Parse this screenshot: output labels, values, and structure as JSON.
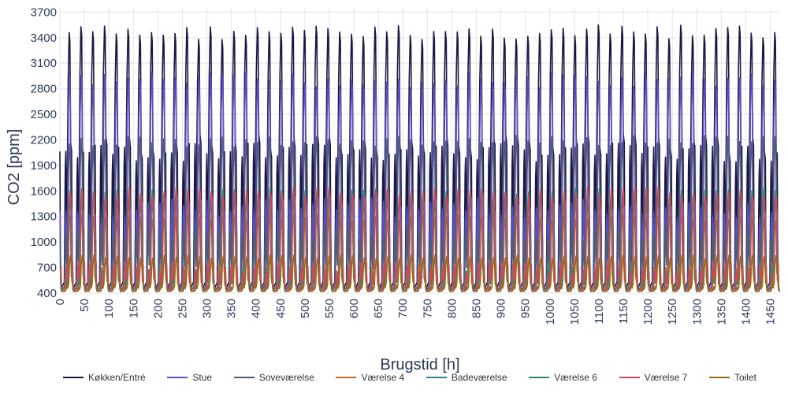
{
  "chart_data": {
    "type": "line",
    "title": "",
    "xlabel": "Brugstid [h]",
    "ylabel": "CO2 [ppm]",
    "xlim": [
      0,
      1470
    ],
    "ylim": [
      400,
      3750
    ],
    "x_ticks": [
      0,
      50,
      100,
      150,
      200,
      250,
      300,
      350,
      400,
      450,
      500,
      550,
      600,
      650,
      700,
      750,
      800,
      850,
      900,
      950,
      1000,
      1050,
      1100,
      1150,
      1200,
      1250,
      1300,
      1350,
      1400,
      1450
    ],
    "y_ticks": [
      400,
      700,
      1000,
      1300,
      1600,
      1900,
      2200,
      2500,
      2800,
      3100,
      3400,
      3700
    ],
    "grid": true,
    "legend_position": "bottom",
    "period_hours": 24,
    "series": [
      {
        "name": "Køkken/Entré",
        "color": "#1b1744",
        "baseline": 2050,
        "peak": 3550,
        "min": 450
      },
      {
        "name": "Stue",
        "color": "#5b4fc0",
        "baseline": 1400,
        "peak": 3000,
        "min": 430
      },
      {
        "name": "Soveværelse",
        "color": "#4e5d78",
        "baseline": 1100,
        "peak": 2250,
        "min": 430
      },
      {
        "name": "Værelse 4",
        "color": "#c86b1e",
        "baseline": 700,
        "peak": 1320,
        "min": 420
      },
      {
        "name": "Badeværelse",
        "color": "#2f7f94",
        "baseline": 600,
        "peak": 1620,
        "min": 420
      },
      {
        "name": "Værelse 6",
        "color": "#2a8a6a",
        "baseline": 650,
        "peak": 1640,
        "min": 420
      },
      {
        "name": "Værelse 7",
        "color": "#c44d5c",
        "baseline": 700,
        "peak": 1650,
        "min": 420
      },
      {
        "name": "Toilet",
        "color": "#9a6a1c",
        "baseline": 500,
        "peak": 850,
        "min": 420
      }
    ]
  }
}
